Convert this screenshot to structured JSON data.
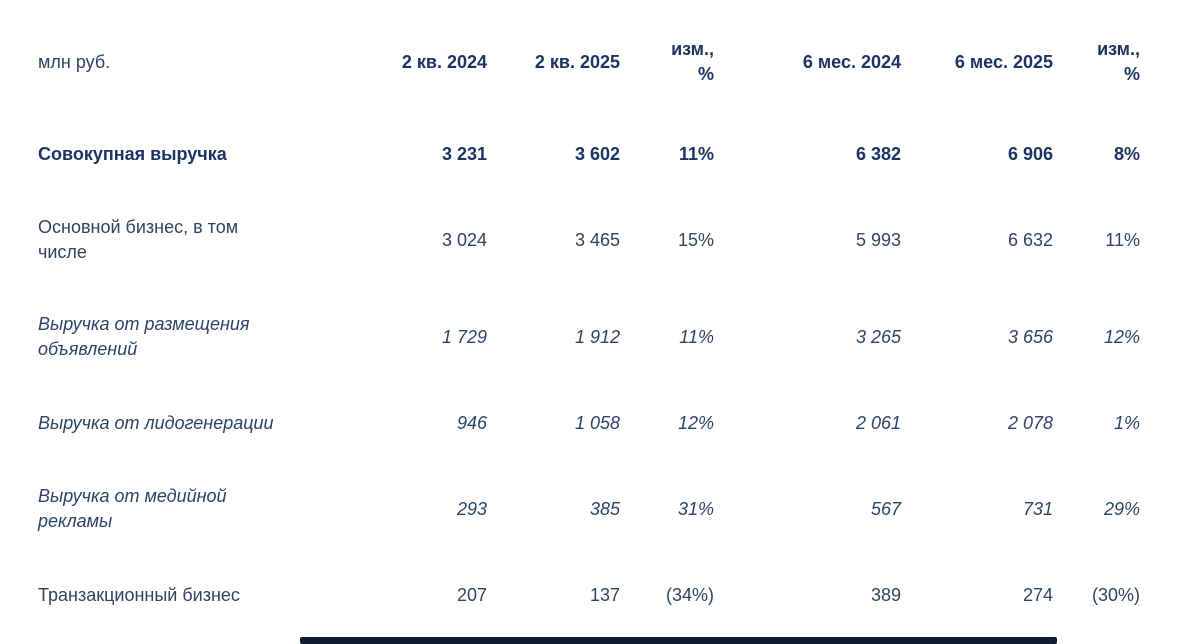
{
  "table": {
    "unit_label": "млн руб.",
    "columns": [
      {
        "label": "2 кв. 2024",
        "type": "value"
      },
      {
        "label": "2 кв. 2025",
        "type": "value"
      },
      {
        "label": "изм., %",
        "type": "change"
      },
      {
        "label": "6 мес. 2024",
        "type": "value"
      },
      {
        "label": "6 мес. 2025",
        "type": "value"
      },
      {
        "label": "изм., %",
        "type": "change"
      }
    ],
    "rows": [
      {
        "label": "Совокупная выручка",
        "style": "bold",
        "values": [
          "3 231",
          "3 602",
          "11%",
          "6 382",
          "6 906",
          "8%"
        ]
      },
      {
        "label": "Основной бизнес, в том числе",
        "style": "regular",
        "values": [
          "3 024",
          "3 465",
          "15%",
          "5 993",
          "6 632",
          "11%"
        ]
      },
      {
        "label": "Выручка от размещения объявлений",
        "style": "italic",
        "values": [
          "1 729",
          "1 912",
          "11%",
          "3 265",
          "3 656",
          "12%"
        ]
      },
      {
        "label": "Выручка от лидогенерации",
        "style": "italic",
        "values": [
          "946",
          "1 058",
          "12%",
          "2 061",
          "2 078",
          "1%"
        ]
      },
      {
        "label": "Выручка от медийной рекламы",
        "style": "italic",
        "values": [
          "293",
          "385",
          "31%",
          "567",
          "731",
          "29%"
        ]
      },
      {
        "label": "Транзакционный бизнес",
        "style": "regular",
        "values": [
          "207",
          "137",
          "(34%)",
          "389",
          "274",
          "(30%)"
        ]
      }
    ]
  },
  "colors": {
    "background": "#ffffff",
    "bold_text": "#1d3462",
    "regular_text": "#2f4460",
    "italic_text": "#2d4366",
    "bottom_bar": "#111b30"
  }
}
